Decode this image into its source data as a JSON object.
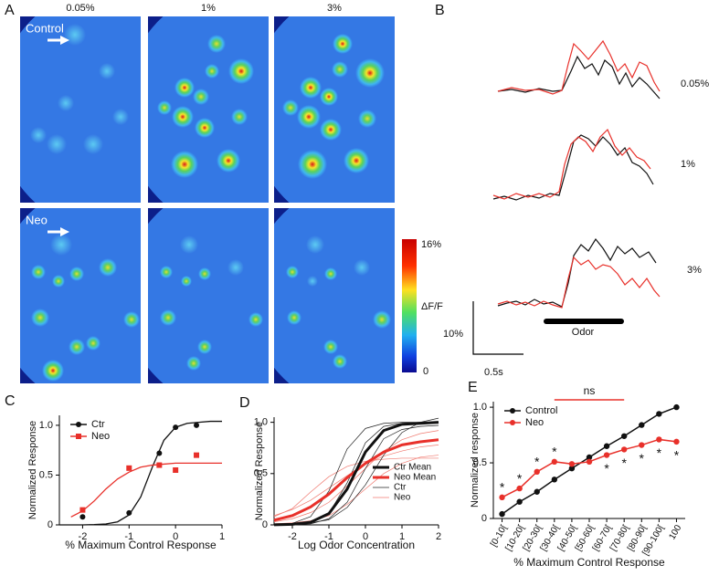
{
  "panel_a": {
    "letter": "A",
    "concentrations": [
      "0.05%",
      "1%",
      "3%"
    ],
    "rows": [
      "Control",
      "Neo"
    ],
    "colorbar": {
      "max": "16%",
      "label": "ΔF/F",
      "min": "0"
    }
  },
  "panel_b": {
    "letter": "B",
    "concentrations": [
      "0.05%",
      "1%",
      "3%"
    ],
    "stimulus": "Odor",
    "scale_y": "10%",
    "scale_x": "0.5s"
  },
  "chart_data": [
    {
      "type": "scatter",
      "panel": "C",
      "xlabel": "% Maximum Control Response",
      "ylabel": "Normalized Response",
      "xlim": [
        -2.5,
        1.0
      ],
      "ylim": [
        0,
        1.1
      ],
      "xticks": [
        -2,
        -1,
        0,
        1
      ],
      "yticks": [
        0,
        0.5,
        {
          "value": 1,
          "label": "1.0"
        }
      ],
      "legend": "upper left",
      "series": [
        {
          "name": "Ctr",
          "color": "#111111",
          "marker": "circle",
          "x": [
            -2,
            -1,
            -0.35,
            0,
            0.45
          ],
          "values": [
            0.08,
            0.12,
            0.72,
            0.98,
            1.0
          ],
          "fit": {
            "x": [
              -2.5,
              -2.25,
              -2,
              -1.75,
              -1.5,
              -1.25,
              -1,
              -0.75,
              -0.5,
              -0.25,
              0,
              0.25,
              0.5,
              0.75,
              1
            ],
            "values": [
              0,
              0,
              0,
              0.003,
              0.009,
              0.03,
              0.1,
              0.28,
              0.58,
              0.85,
              0.98,
              1.02,
              1.03,
              1.04,
              1.04
            ]
          }
        },
        {
          "name": "Neo",
          "color": "#e8302a",
          "marker": "square",
          "x": [
            -2,
            -1,
            -0.35,
            0,
            0.45
          ],
          "values": [
            0.15,
            0.57,
            0.6,
            0.55,
            0.7
          ],
          "fit": {
            "x": [
              -2.25,
              -2,
              -1.75,
              -1.5,
              -1.25,
              -1,
              -0.75,
              -0.5,
              -0.25,
              0,
              0.25,
              0.5,
              0.75,
              1
            ],
            "values": [
              0.08,
              0.14,
              0.24,
              0.36,
              0.46,
              0.53,
              0.58,
              0.6,
              0.61,
              0.62,
              0.62,
              0.62,
              0.62,
              0.62
            ]
          }
        }
      ]
    },
    {
      "type": "line",
      "panel": "D",
      "xlabel": "Log Odor Concentration",
      "ylabel": "Normalized Response",
      "xlim": [
        -2.5,
        2
      ],
      "ylim": [
        0,
        1.05
      ],
      "xticks": [
        -2,
        -1,
        0,
        1,
        2
      ],
      "yticks": [
        0,
        0.5,
        {
          "value": 1,
          "label": "1.0"
        }
      ],
      "legend": "lower right",
      "x": [
        -2.5,
        -2,
        -1.5,
        -1,
        -0.5,
        0,
        0.5,
        1,
        1.5,
        2
      ],
      "series": [
        {
          "name": "Ctr Mean",
          "color": "#111111",
          "width": 3,
          "values": [
            0.001,
            0.006,
            0.026,
            0.11,
            0.35,
            0.71,
            0.92,
            0.98,
            0.99,
            1.0
          ]
        },
        {
          "name": "Neo Mean",
          "color": "#e8302a",
          "width": 3,
          "values": [
            0.046,
            0.09,
            0.175,
            0.3,
            0.46,
            0.6,
            0.71,
            0.78,
            0.81,
            0.83
          ]
        },
        {
          "name": "Ctr",
          "color": "#222222",
          "width": 0.7,
          "curves": [
            [
              0.003,
              0.015,
              0.08,
              0.33,
              0.74,
              0.94,
              0.99,
              1,
              1,
              1
            ],
            [
              0,
              0.004,
              0.02,
              0.11,
              0.41,
              0.8,
              0.96,
              0.99,
              1,
              1
            ],
            [
              0,
              0.002,
              0.01,
              0.06,
              0.22,
              0.55,
              0.84,
              0.93,
              0.96,
              0.97
            ],
            [
              0.001,
              0.006,
              0.02,
              0.05,
              0.17,
              0.39,
              0.68,
              0.9,
              1.0,
              1.04
            ]
          ]
        },
        {
          "name": "Neo",
          "color": "#f07a70",
          "width": 0.7,
          "curves": [
            [
              0.03,
              0.06,
              0.12,
              0.22,
              0.38,
              0.55,
              0.72,
              0.83,
              0.89,
              0.92
            ],
            [
              0.08,
              0.16,
              0.32,
              0.47,
              0.57,
              0.62,
              0.64,
              0.65,
              0.65,
              0.65
            ],
            [
              0.09,
              0.15,
              0.24,
              0.36,
              0.48,
              0.59,
              0.67,
              0.72,
              0.76,
              0.78
            ],
            [
              0.01,
              0.02,
              0.04,
              0.09,
              0.2,
              0.35,
              0.5,
              0.6,
              0.66,
              0.68
            ]
          ]
        }
      ]
    },
    {
      "type": "line",
      "panel": "E",
      "xlabel": "% Maximum Control Response",
      "ylabel": "Normalized response",
      "categories": [
        "[0-10[",
        "[10-20[",
        "[20-30[",
        "[30-40[",
        "[40-50[",
        "[50-60[",
        "[60-70[",
        "[70-80[",
        "[80-90[",
        "[90-100[",
        "100"
      ],
      "ylim": [
        0,
        1.05
      ],
      "yticks": [
        0,
        0.5,
        {
          "value": 1,
          "label": "1.0"
        }
      ],
      "legend": "upper left",
      "series": [
        {
          "name": "Control",
          "color": "#111111",
          "values": [
            0.04,
            0.15,
            0.24,
            0.35,
            0.45,
            0.55,
            0.65,
            0.74,
            0.84,
            0.94,
            1.0
          ]
        },
        {
          "name": "Neo",
          "color": "#e8302a",
          "values": [
            0.19,
            0.27,
            0.42,
            0.51,
            0.49,
            0.51,
            0.57,
            0.62,
            0.66,
            0.71,
            0.69
          ]
        }
      ],
      "significance": [
        "*",
        "*",
        "*",
        "*",
        null,
        null,
        "*",
        "*",
        "*",
        "*",
        "*"
      ],
      "annotation": "ns"
    }
  ]
}
